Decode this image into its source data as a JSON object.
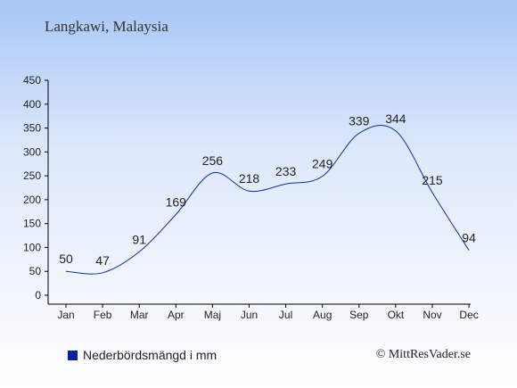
{
  "title": "Langkawi, Malaysia",
  "legend_label": "Nederbördsmängd i mm",
  "credit": "© MittResVader.se",
  "colors": {
    "line": "#0a2ea8",
    "legend_swatch": "#0a1fa6",
    "axis": "#000000",
    "label": "#222222"
  },
  "chart_data": {
    "type": "line",
    "categories": [
      "Jan",
      "Feb",
      "Mar",
      "Apr",
      "Maj",
      "Jun",
      "Jul",
      "Aug",
      "Sep",
      "Okt",
      "Nov",
      "Dec"
    ],
    "series": [
      {
        "name": "Nederbördsmängd i mm",
        "values": [
          50,
          47,
          91,
          169,
          256,
          218,
          233,
          249,
          339,
          344,
          215,
          94
        ]
      }
    ],
    "yticks": [
      0,
      50,
      100,
      150,
      200,
      250,
      300,
      350,
      400,
      450
    ],
    "ylim": [
      0,
      450
    ],
    "xlabel": "",
    "ylabel": "",
    "grid": false,
    "legend": "bottom-left"
  }
}
